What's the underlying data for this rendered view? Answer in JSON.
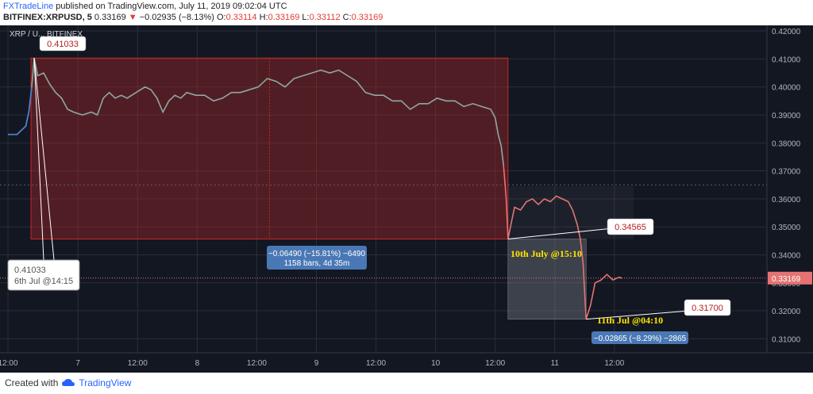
{
  "header": {
    "author": "FXTradeLine",
    "published": "published on TradingView.com, July 11, 2019 09:02:04 UTC",
    "symbol": "BITFINEX:XRPUSD, 5",
    "last": "0.33169",
    "arrow": "▼",
    "change": "−0.02935 (−8.13%)",
    "o_label": "O:",
    "o": "0.33114",
    "h_label": "H:",
    "h": "0.33169",
    "l_label": "L:",
    "l": "0.33112",
    "c_label": "C:",
    "c": "0.33169"
  },
  "footer": {
    "created_with": "Created with",
    "brand": "TradingView"
  },
  "colors": {
    "bg": "#131722",
    "grid": "#2a2e39",
    "axis_text": "#b2b5be",
    "price_up": "#8ea8a2",
    "price_down": "#e57373",
    "pre_line": "#4a7fd3",
    "red_box": "#c62828",
    "callout_blue": "#4a78b5",
    "yellow": "#ffe600"
  },
  "chart_data": {
    "type": "line",
    "title": "XRP / U... BITFINEX",
    "ylim": [
      0.305,
      0.422
    ],
    "xlim": [
      0,
      25
    ],
    "x_ticks": [
      {
        "x": 0.0,
        "label": "12:00"
      },
      {
        "x": 2.35,
        "label": "7"
      },
      {
        "x": 4.35,
        "label": "12:00"
      },
      {
        "x": 6.35,
        "label": "8"
      },
      {
        "x": 8.35,
        "label": "12:00"
      },
      {
        "x": 10.35,
        "label": "9"
      },
      {
        "x": 12.35,
        "label": "12:00"
      },
      {
        "x": 14.35,
        "label": "10"
      },
      {
        "x": 16.35,
        "label": "12:00"
      },
      {
        "x": 18.35,
        "label": "11"
      },
      {
        "x": 20.35,
        "label": "12:00"
      }
    ],
    "y_ticks": [
      "0.42000",
      "0.41000",
      "0.40000",
      "0.39000",
      "0.38000",
      "0.37000",
      "0.36000",
      "0.35000",
      "0.34000",
      "0.33000",
      "0.32000",
      "0.31000"
    ],
    "current_price": "0.33169",
    "series": [
      {
        "points": [
          [
            0,
            0.383
          ],
          [
            0.3,
            0.383
          ],
          [
            0.5,
            0.385
          ],
          [
            0.6,
            0.386
          ],
          [
            0.7,
            0.391
          ],
          [
            0.8,
            0.4
          ],
          [
            0.88,
            0.4103
          ],
          [
            1.0,
            0.404
          ],
          [
            1.2,
            0.405
          ],
          [
            1.4,
            0.401
          ],
          [
            1.6,
            0.398
          ],
          [
            1.8,
            0.396
          ],
          [
            2.0,
            0.392
          ],
          [
            2.2,
            0.391
          ],
          [
            2.5,
            0.39
          ],
          [
            2.8,
            0.391
          ],
          [
            3.0,
            0.39
          ],
          [
            3.2,
            0.396
          ],
          [
            3.4,
            0.398
          ],
          [
            3.6,
            0.396
          ],
          [
            3.8,
            0.397
          ],
          [
            4.0,
            0.396
          ],
          [
            4.3,
            0.398
          ],
          [
            4.6,
            0.4
          ],
          [
            4.8,
            0.399
          ],
          [
            5.0,
            0.396
          ],
          [
            5.2,
            0.391
          ],
          [
            5.4,
            0.395
          ],
          [
            5.6,
            0.397
          ],
          [
            5.8,
            0.396
          ],
          [
            6.0,
            0.398
          ],
          [
            6.3,
            0.397
          ],
          [
            6.6,
            0.397
          ],
          [
            6.9,
            0.395
          ],
          [
            7.2,
            0.396
          ],
          [
            7.5,
            0.398
          ],
          [
            7.8,
            0.398
          ],
          [
            8.1,
            0.399
          ],
          [
            8.4,
            0.4
          ],
          [
            8.7,
            0.403
          ],
          [
            9.0,
            0.402
          ],
          [
            9.3,
            0.4
          ],
          [
            9.6,
            0.403
          ],
          [
            9.9,
            0.404
          ],
          [
            10.2,
            0.405
          ],
          [
            10.5,
            0.406
          ],
          [
            10.8,
            0.405
          ],
          [
            11.1,
            0.406
          ],
          [
            11.4,
            0.404
          ],
          [
            11.7,
            0.402
          ],
          [
            12.0,
            0.398
          ],
          [
            12.3,
            0.397
          ],
          [
            12.6,
            0.397
          ],
          [
            12.9,
            0.395
          ],
          [
            13.2,
            0.395
          ],
          [
            13.5,
            0.392
          ],
          [
            13.8,
            0.394
          ],
          [
            14.1,
            0.394
          ],
          [
            14.4,
            0.396
          ],
          [
            14.7,
            0.395
          ],
          [
            15.0,
            0.395
          ],
          [
            15.3,
            0.393
          ],
          [
            15.6,
            0.394
          ],
          [
            15.9,
            0.393
          ],
          [
            16.2,
            0.392
          ],
          [
            16.35,
            0.389
          ],
          [
            16.45,
            0.383
          ],
          [
            16.55,
            0.379
          ],
          [
            16.63,
            0.372
          ]
        ]
      },
      {
        "points": [
          [
            16.63,
            0.372
          ],
          [
            16.72,
            0.36
          ],
          [
            16.78,
            0.3457
          ],
          [
            16.9,
            0.352
          ],
          [
            17.0,
            0.357
          ],
          [
            17.2,
            0.356
          ],
          [
            17.4,
            0.359
          ],
          [
            17.6,
            0.36
          ],
          [
            17.8,
            0.358
          ],
          [
            18.0,
            0.36
          ],
          [
            18.2,
            0.359
          ],
          [
            18.4,
            0.361
          ],
          [
            18.6,
            0.36
          ],
          [
            18.8,
            0.359
          ],
          [
            18.95,
            0.356
          ],
          [
            19.1,
            0.351
          ],
          [
            19.2,
            0.346
          ],
          [
            19.3,
            0.337
          ],
          [
            19.4,
            0.317
          ],
          [
            19.55,
            0.322
          ],
          [
            19.7,
            0.33
          ],
          [
            19.9,
            0.331
          ],
          [
            20.1,
            0.333
          ],
          [
            20.3,
            0.331
          ],
          [
            20.5,
            0.332
          ],
          [
            20.6,
            0.3317
          ]
        ]
      }
    ],
    "annotations": {
      "high_label": "0.41033",
      "high_note_value": "0.41033",
      "high_note_date": "6th Jul @14:15",
      "mid_label": "0.34565",
      "mid_date": "10th July @15:10",
      "low_label": "0.31700",
      "low_date": "11th Jul @04:10",
      "range1_line1": "−0.06490 (−15.81%) −6490",
      "range1_line2": "1158 bars, 4d 35m",
      "range2_line1": "−0.02865 (−8.29%) −2865"
    }
  }
}
